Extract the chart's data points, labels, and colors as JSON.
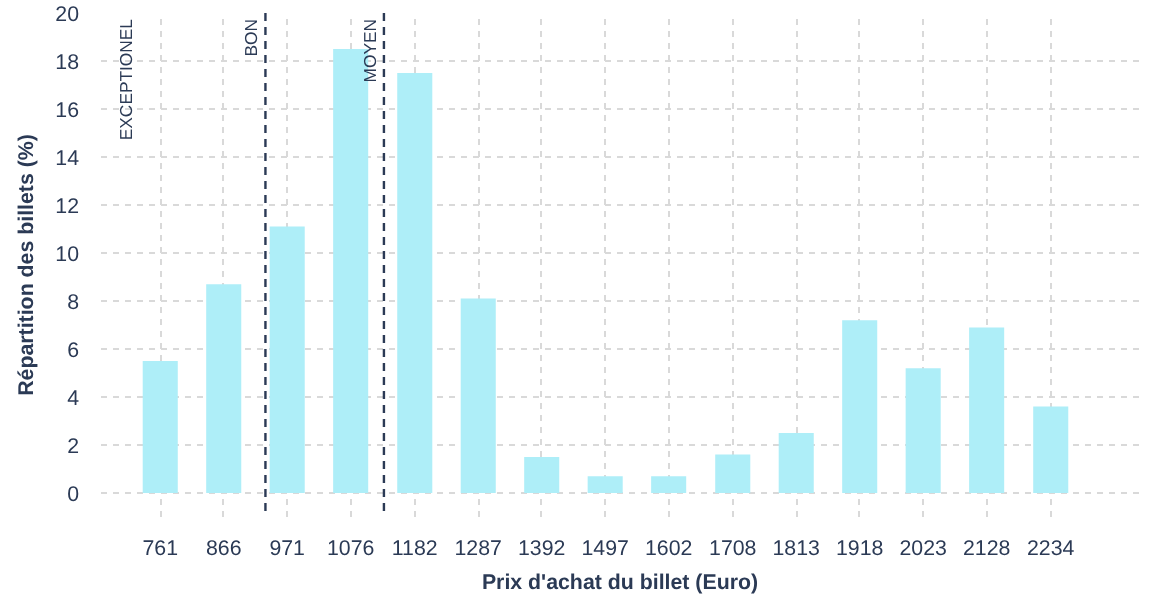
{
  "chart_data": {
    "type": "bar",
    "xlabel": "Prix d'achat du billet (Euro)",
    "ylabel": "Répartition des billets (%)",
    "x": [
      761,
      866,
      971,
      1076,
      1182,
      1287,
      1392,
      1497,
      1602,
      1708,
      1813,
      1918,
      2023,
      2128,
      2234
    ],
    "values": [
      5.5,
      8.7,
      11.1,
      18.5,
      17.5,
      8.1,
      1.5,
      0.7,
      0.7,
      1.6,
      2.5,
      7.2,
      5.2,
      6.9,
      3.6
    ],
    "color": "#aeeef8",
    "xlim": [
      663,
      2380
    ],
    "xticks": [
      761,
      866,
      971,
      1076,
      1182,
      1287,
      1392,
      1497,
      1602,
      1708,
      1813,
      1918,
      2023,
      2128,
      2234
    ],
    "ylim": [
      -1,
      20
    ],
    "yticks": [
      0,
      2,
      4,
      6,
      8,
      10,
      12,
      14,
      16,
      18,
      20
    ],
    "grid": true,
    "ref_lines": [
      {
        "axis": "x",
        "value": 935,
        "label": "BON",
        "color": "#2b3a55",
        "line_style": "dashed"
      },
      {
        "axis": "x",
        "value": 1131,
        "label": "MOYEN",
        "color": "#2b3a55",
        "line_style": "dashed"
      }
    ],
    "annotations": [
      "EXCEPTIONEL"
    ]
  }
}
